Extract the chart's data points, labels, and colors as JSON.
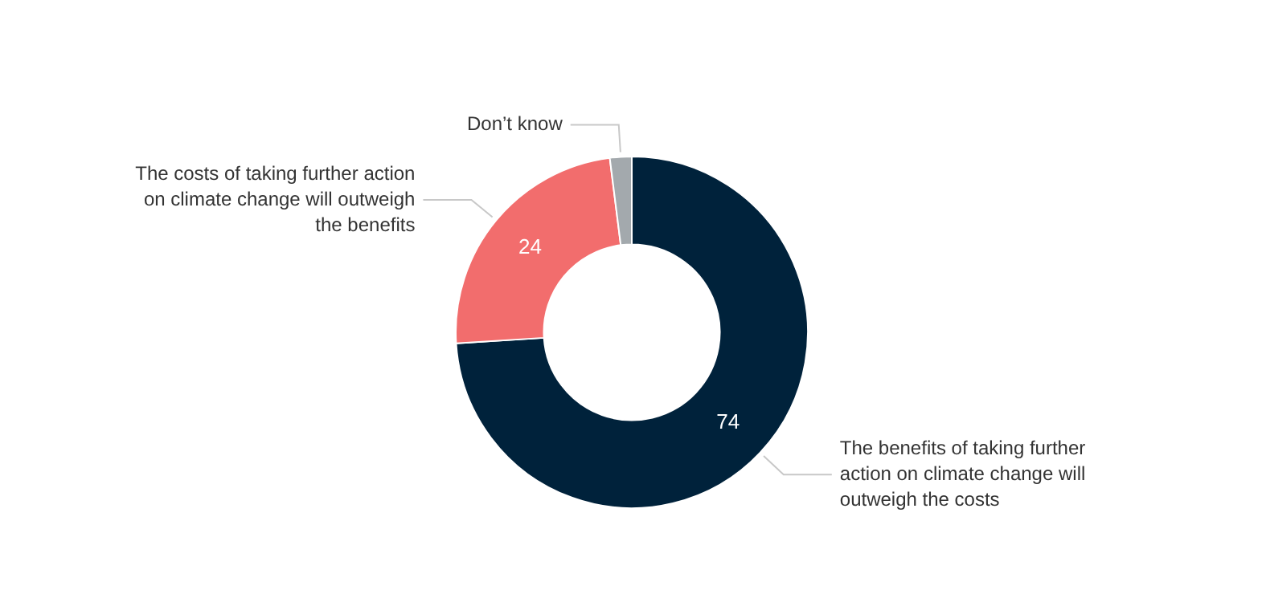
{
  "chart_data": {
    "type": "donut",
    "categories": [
      "The benefits of taking further action on climate change will outweigh the costs",
      "The costs of taking further action on climate change will outweigh the benefits",
      "Don’t know"
    ],
    "values": [
      74,
      24,
      2
    ],
    "colors": [
      "#00223b",
      "#f26d6d",
      "#a3a9ad"
    ],
    "value_labels": [
      "74",
      "24",
      null
    ],
    "legend": false
  }
}
